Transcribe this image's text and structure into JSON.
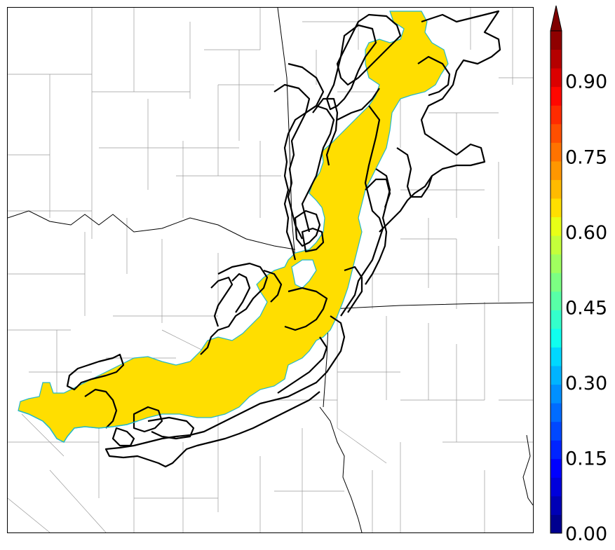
{
  "colorbar": {
    "tick_labels": [
      "0.00",
      "0.15",
      "0.30",
      "0.45",
      "0.60",
      "0.75",
      "0.90"
    ],
    "range": [
      0.0,
      1.0
    ],
    "extend": "max",
    "colors": [
      "#00008f",
      "#0000b5",
      "#0000db",
      "#0000ff",
      "#0024ff",
      "#0048ff",
      "#006cff",
      "#0090ff",
      "#00b4ff",
      "#00d8ff",
      "#10ffef",
      "#34ffcb",
      "#58ffa7",
      "#7cff83",
      "#a0ff5f",
      "#c4ff3b",
      "#e8ff17",
      "#ffdf00",
      "#ffbb00",
      "#ff9700",
      "#ff7300",
      "#ff4f00",
      "#ff2b00",
      "#ff0700",
      "#db0000",
      "#b50000",
      "#8f0000"
    ],
    "extend_color": "#800000"
  },
  "map": {
    "fill_value": 0.66,
    "fill_color": "#ffde00",
    "edge_color": "#22b8c8",
    "contour_color": "#000000",
    "border_color": "#000000",
    "county_color": "#9a9a9a"
  }
}
